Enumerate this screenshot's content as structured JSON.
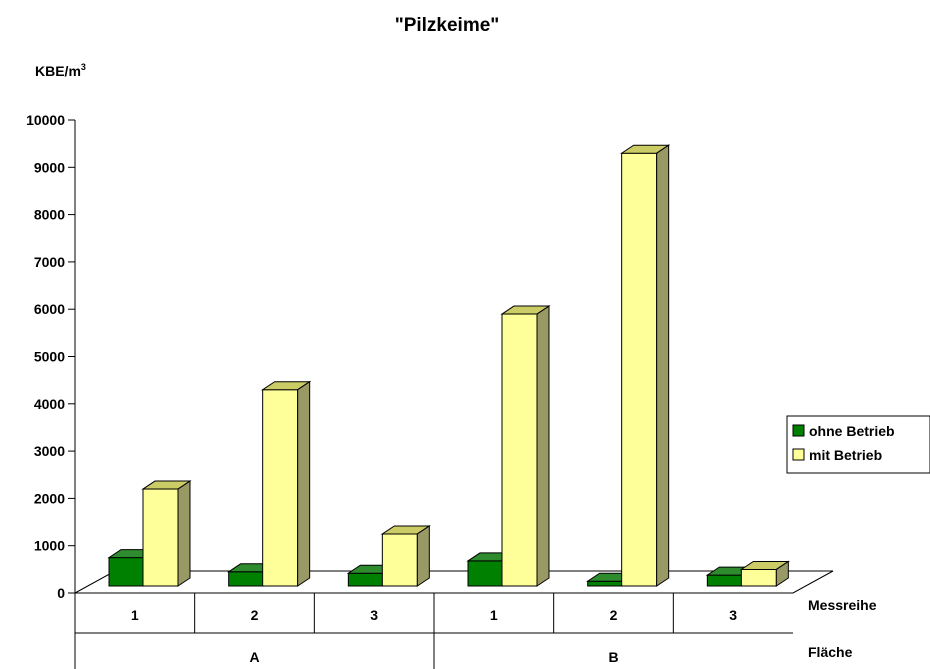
{
  "chart_data": {
    "type": "bar",
    "title": "\"Pilzkeime\"",
    "ylabel": "KBE/m",
    "ylabel_sup": "3",
    "ylim": [
      0,
      10000
    ],
    "yticks": [
      "0",
      "1000",
      "2000",
      "3000",
      "4000",
      "5000",
      "6000",
      "7000",
      "8000",
      "9000",
      "10000"
    ],
    "categories": [
      "1",
      "2",
      "3",
      "1",
      "2",
      "3"
    ],
    "groups": [
      "A",
      "B"
    ],
    "row_label_1": "Messreihe",
    "row_label_2": "Fläche",
    "series": [
      {
        "name": "ohne Betrieb",
        "values": [
          600,
          300,
          270,
          530,
          100,
          230
        ]
      },
      {
        "name": "mit Betrieb",
        "values": [
          2050,
          4150,
          1100,
          5750,
          9150,
          350
        ]
      }
    ],
    "legend_position": "right",
    "colors": {
      "ohne_front": "#008000",
      "ohne_top": "#2e8b2e",
      "ohne_side": "#004d00",
      "mit_front": "#ffff99",
      "mit_top": "#cccc66",
      "mit_side": "#999966"
    }
  }
}
